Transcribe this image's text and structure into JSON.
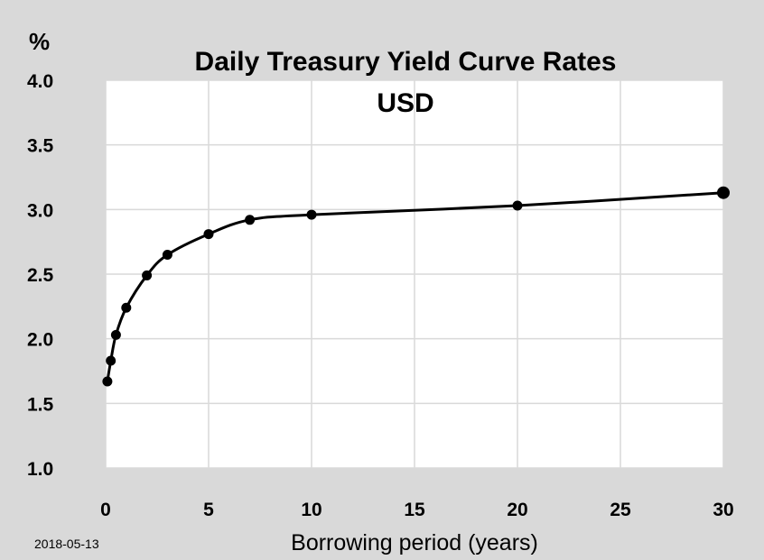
{
  "chart_data": {
    "type": "line",
    "title": "Daily Treasury Yield Curve Rates",
    "subtitle": "USD",
    "ylabel": "%",
    "xlabel": "Borrowing period (years)",
    "date": "2018-05-13",
    "xlim": [
      0,
      30
    ],
    "ylim": [
      1.0,
      4.0
    ],
    "xticks": [
      0,
      5,
      10,
      15,
      20,
      25,
      30
    ],
    "yticks": [
      "1.0",
      "1.5",
      "2.0",
      "2.5",
      "3.0",
      "3.5",
      "4.0"
    ],
    "grid": true,
    "series": [
      {
        "x": [
          0.083,
          0.25,
          0.5,
          1,
          2,
          3,
          5,
          7,
          10,
          20,
          30
        ],
        "values": [
          1.67,
          1.83,
          2.03,
          2.24,
          2.49,
          2.65,
          2.81,
          2.92,
          2.96,
          3.03,
          3.13
        ]
      }
    ],
    "colors": {
      "background": "#d9d9d9",
      "plot_background": "#ffffff",
      "gridline": "#d9d9d9",
      "line": "#000000"
    }
  }
}
